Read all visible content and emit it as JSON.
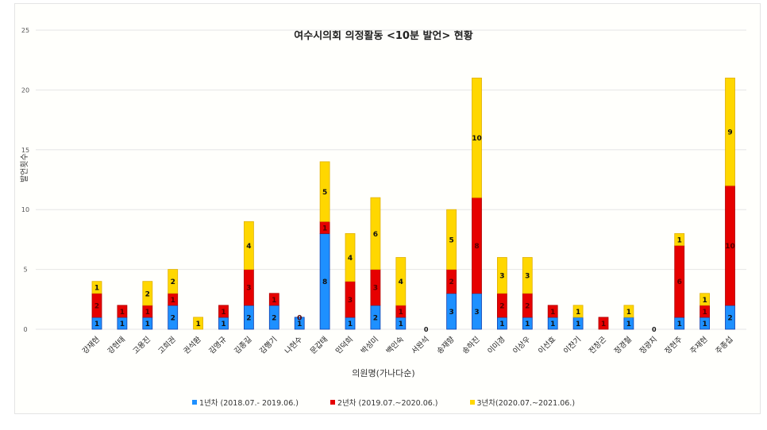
{
  "chart_data": {
    "type": "bar",
    "stacked": true,
    "title": "여수시의회 의정활동 <10분 발언> 현황",
    "xlabel": "의원명(가나다순)",
    "ylabel": "발언횟수",
    "ylim": [
      0,
      25
    ],
    "yticks": [
      0,
      5,
      10,
      15,
      20,
      25
    ],
    "grid": true,
    "legend_position": "bottom",
    "categories": [
      "강재현",
      "강현태",
      "고용진",
      "고희권",
      "권석환",
      "김영규",
      "김종길",
      "김행기",
      "나현수",
      "문갑태",
      "민덕희",
      "박성미",
      "백인숙",
      "서완석",
      "송재향",
      "송하진",
      "이미경",
      "이상우",
      "이선효",
      "이찬기",
      "전창곤",
      "정경철",
      "정광지",
      "정현주",
      "주재현",
      "주종섭"
    ],
    "series": [
      {
        "name": "1년차 (2018.07.- 2019.06.)",
        "color": "#1e90ff",
        "values": [
          1,
          1,
          1,
          2,
          0,
          1,
          2,
          2,
          1,
          8,
          1,
          2,
          1,
          0,
          3,
          3,
          1,
          1,
          1,
          1,
          0,
          1,
          0,
          1,
          1,
          2
        ]
      },
      {
        "name": "2년차 (2019.07.~2020.06.)",
        "color": "#e60000",
        "values": [
          2,
          1,
          1,
          1,
          0,
          1,
          3,
          1,
          0,
          1,
          3,
          3,
          1,
          0,
          2,
          8,
          2,
          2,
          1,
          0,
          1,
          0,
          0,
          6,
          1,
          10
        ]
      },
      {
        "name": "3년차(2020.07.~2021.06.)",
        "color": "#ffd700",
        "values": [
          1,
          0,
          2,
          2,
          1,
          0,
          4,
          0,
          0,
          5,
          4,
          6,
          4,
          0,
          5,
          10,
          3,
          3,
          0,
          1,
          0,
          1,
          0,
          1,
          1,
          9
        ]
      }
    ]
  }
}
